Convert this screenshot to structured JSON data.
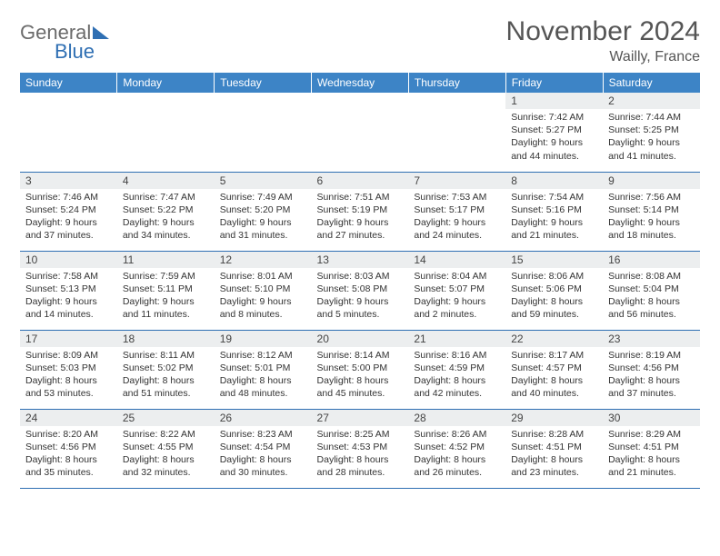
{
  "logo": {
    "word1": "General",
    "word2": "Blue"
  },
  "title": {
    "month": "November 2024",
    "location": "Wailly, France"
  },
  "header_bg": "#3d84c6",
  "day_bg": "#eceeef",
  "line_color": "#2f6fb3",
  "columns": [
    "Sunday",
    "Monday",
    "Tuesday",
    "Wednesday",
    "Thursday",
    "Friday",
    "Saturday"
  ],
  "weeks": [
    [
      null,
      null,
      null,
      null,
      null,
      {
        "n": "1",
        "sr": "7:42 AM",
        "ss": "5:27 PM",
        "dl": "9 hours and 44 minutes."
      },
      {
        "n": "2",
        "sr": "7:44 AM",
        "ss": "5:25 PM",
        "dl": "9 hours and 41 minutes."
      }
    ],
    [
      {
        "n": "3",
        "sr": "7:46 AM",
        "ss": "5:24 PM",
        "dl": "9 hours and 37 minutes."
      },
      {
        "n": "4",
        "sr": "7:47 AM",
        "ss": "5:22 PM",
        "dl": "9 hours and 34 minutes."
      },
      {
        "n": "5",
        "sr": "7:49 AM",
        "ss": "5:20 PM",
        "dl": "9 hours and 31 minutes."
      },
      {
        "n": "6",
        "sr": "7:51 AM",
        "ss": "5:19 PM",
        "dl": "9 hours and 27 minutes."
      },
      {
        "n": "7",
        "sr": "7:53 AM",
        "ss": "5:17 PM",
        "dl": "9 hours and 24 minutes."
      },
      {
        "n": "8",
        "sr": "7:54 AM",
        "ss": "5:16 PM",
        "dl": "9 hours and 21 minutes."
      },
      {
        "n": "9",
        "sr": "7:56 AM",
        "ss": "5:14 PM",
        "dl": "9 hours and 18 minutes."
      }
    ],
    [
      {
        "n": "10",
        "sr": "7:58 AM",
        "ss": "5:13 PM",
        "dl": "9 hours and 14 minutes."
      },
      {
        "n": "11",
        "sr": "7:59 AM",
        "ss": "5:11 PM",
        "dl": "9 hours and 11 minutes."
      },
      {
        "n": "12",
        "sr": "8:01 AM",
        "ss": "5:10 PM",
        "dl": "9 hours and 8 minutes."
      },
      {
        "n": "13",
        "sr": "8:03 AM",
        "ss": "5:08 PM",
        "dl": "9 hours and 5 minutes."
      },
      {
        "n": "14",
        "sr": "8:04 AM",
        "ss": "5:07 PM",
        "dl": "9 hours and 2 minutes."
      },
      {
        "n": "15",
        "sr": "8:06 AM",
        "ss": "5:06 PM",
        "dl": "8 hours and 59 minutes."
      },
      {
        "n": "16",
        "sr": "8:08 AM",
        "ss": "5:04 PM",
        "dl": "8 hours and 56 minutes."
      }
    ],
    [
      {
        "n": "17",
        "sr": "8:09 AM",
        "ss": "5:03 PM",
        "dl": "8 hours and 53 minutes."
      },
      {
        "n": "18",
        "sr": "8:11 AM",
        "ss": "5:02 PM",
        "dl": "8 hours and 51 minutes."
      },
      {
        "n": "19",
        "sr": "8:12 AM",
        "ss": "5:01 PM",
        "dl": "8 hours and 48 minutes."
      },
      {
        "n": "20",
        "sr": "8:14 AM",
        "ss": "5:00 PM",
        "dl": "8 hours and 45 minutes."
      },
      {
        "n": "21",
        "sr": "8:16 AM",
        "ss": "4:59 PM",
        "dl": "8 hours and 42 minutes."
      },
      {
        "n": "22",
        "sr": "8:17 AM",
        "ss": "4:57 PM",
        "dl": "8 hours and 40 minutes."
      },
      {
        "n": "23",
        "sr": "8:19 AM",
        "ss": "4:56 PM",
        "dl": "8 hours and 37 minutes."
      }
    ],
    [
      {
        "n": "24",
        "sr": "8:20 AM",
        "ss": "4:56 PM",
        "dl": "8 hours and 35 minutes."
      },
      {
        "n": "25",
        "sr": "8:22 AM",
        "ss": "4:55 PM",
        "dl": "8 hours and 32 minutes."
      },
      {
        "n": "26",
        "sr": "8:23 AM",
        "ss": "4:54 PM",
        "dl": "8 hours and 30 minutes."
      },
      {
        "n": "27",
        "sr": "8:25 AM",
        "ss": "4:53 PM",
        "dl": "8 hours and 28 minutes."
      },
      {
        "n": "28",
        "sr": "8:26 AM",
        "ss": "4:52 PM",
        "dl": "8 hours and 26 minutes."
      },
      {
        "n": "29",
        "sr": "8:28 AM",
        "ss": "4:51 PM",
        "dl": "8 hours and 23 minutes."
      },
      {
        "n": "30",
        "sr": "8:29 AM",
        "ss": "4:51 PM",
        "dl": "8 hours and 21 minutes."
      }
    ]
  ],
  "labels": {
    "sunrise": "Sunrise: ",
    "sunset": "Sunset: ",
    "daylight": "Daylight: "
  }
}
